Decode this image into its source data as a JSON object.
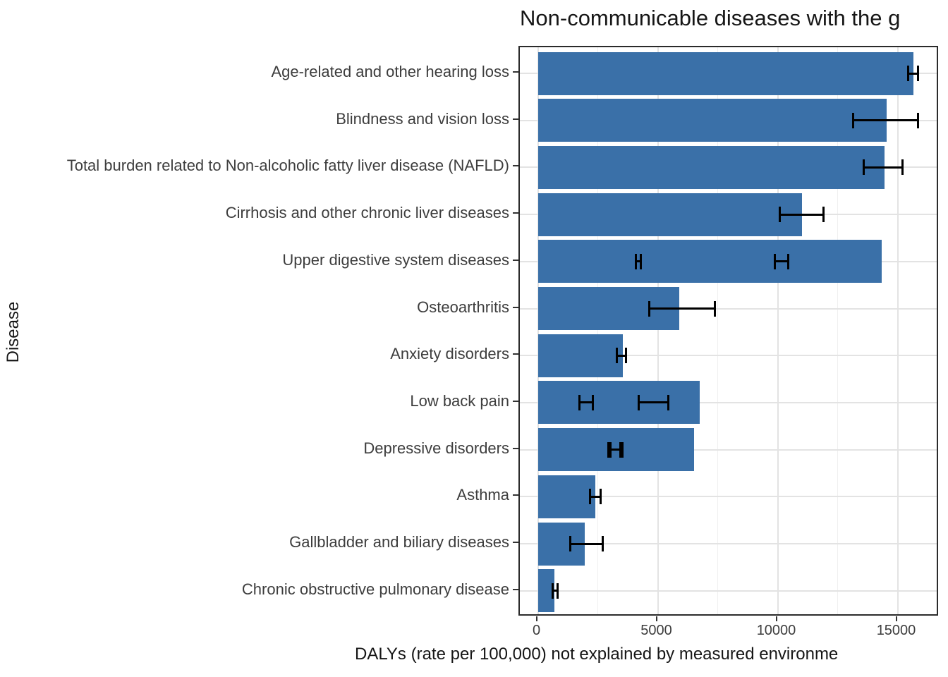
{
  "chart_data": {
    "type": "bar",
    "orientation": "horizontal",
    "title": "Non-communicable diseases with the g",
    "xlabel": "DALYs (rate per 100,000) not explained by measured environme",
    "ylabel": "Disease",
    "xlim": [
      -750,
      16750
    ],
    "x_major_ticks": [
      0,
      5000,
      10000,
      15000
    ],
    "x_major_tick_labels": [
      "0",
      "5000",
      "10000",
      "15000"
    ],
    "x_minor_ticks": [
      2500,
      7500,
      12500
    ],
    "grid": true,
    "legend": "none",
    "bar_color": "#3a70a8",
    "categories": [
      "Age-related and other hearing loss",
      "Blindness and vision loss",
      "Total burden related to Non-alcoholic fatty liver disease (NAFLD)",
      "Cirrhosis and other chronic liver diseases",
      "Upper digestive system diseases",
      "Osteoarthritis",
      "Anxiety disorders",
      "Low back pain",
      "Depressive disorders",
      "Asthma",
      "Gallbladder and biliary diseases",
      "Chronic obstructive pulmonary disease"
    ],
    "values": [
      15650,
      14550,
      14450,
      11000,
      14350,
      5900,
      3550,
      6750,
      6500,
      2400,
      1950,
      700
    ],
    "error_bars": [
      [
        [
          15400,
          15900
        ]
      ],
      [
        [
          13100,
          15900
        ]
      ],
      [
        [
          13550,
          15250
        ]
      ],
      [
        [
          10050,
          11950
        ]
      ],
      [
        [
          4050,
          4350
        ],
        [
          9850,
          10480
        ]
      ],
      [
        [
          4600,
          7430
        ]
      ],
      [
        [
          3260,
          3730
        ]
      ],
      [
        [
          1700,
          2350
        ],
        [
          4170,
          5490
        ]
      ],
      [
        [
          2900,
          3490
        ],
        [
          2990,
          3580
        ]
      ],
      [
        [
          2140,
          2670
        ]
      ],
      [
        [
          1320,
          2760
        ]
      ],
      [
        [
          560,
          880
        ]
      ]
    ]
  },
  "colors": {
    "bar_fill": "#3a70a8",
    "error_bar": "#000000",
    "panel_border": "#2b2b2b",
    "grid_major": "#e3e3e3",
    "grid_minor": "#efefef",
    "axis_text": "#3d3d3d",
    "title_text": "#161616",
    "background": "#ffffff"
  }
}
